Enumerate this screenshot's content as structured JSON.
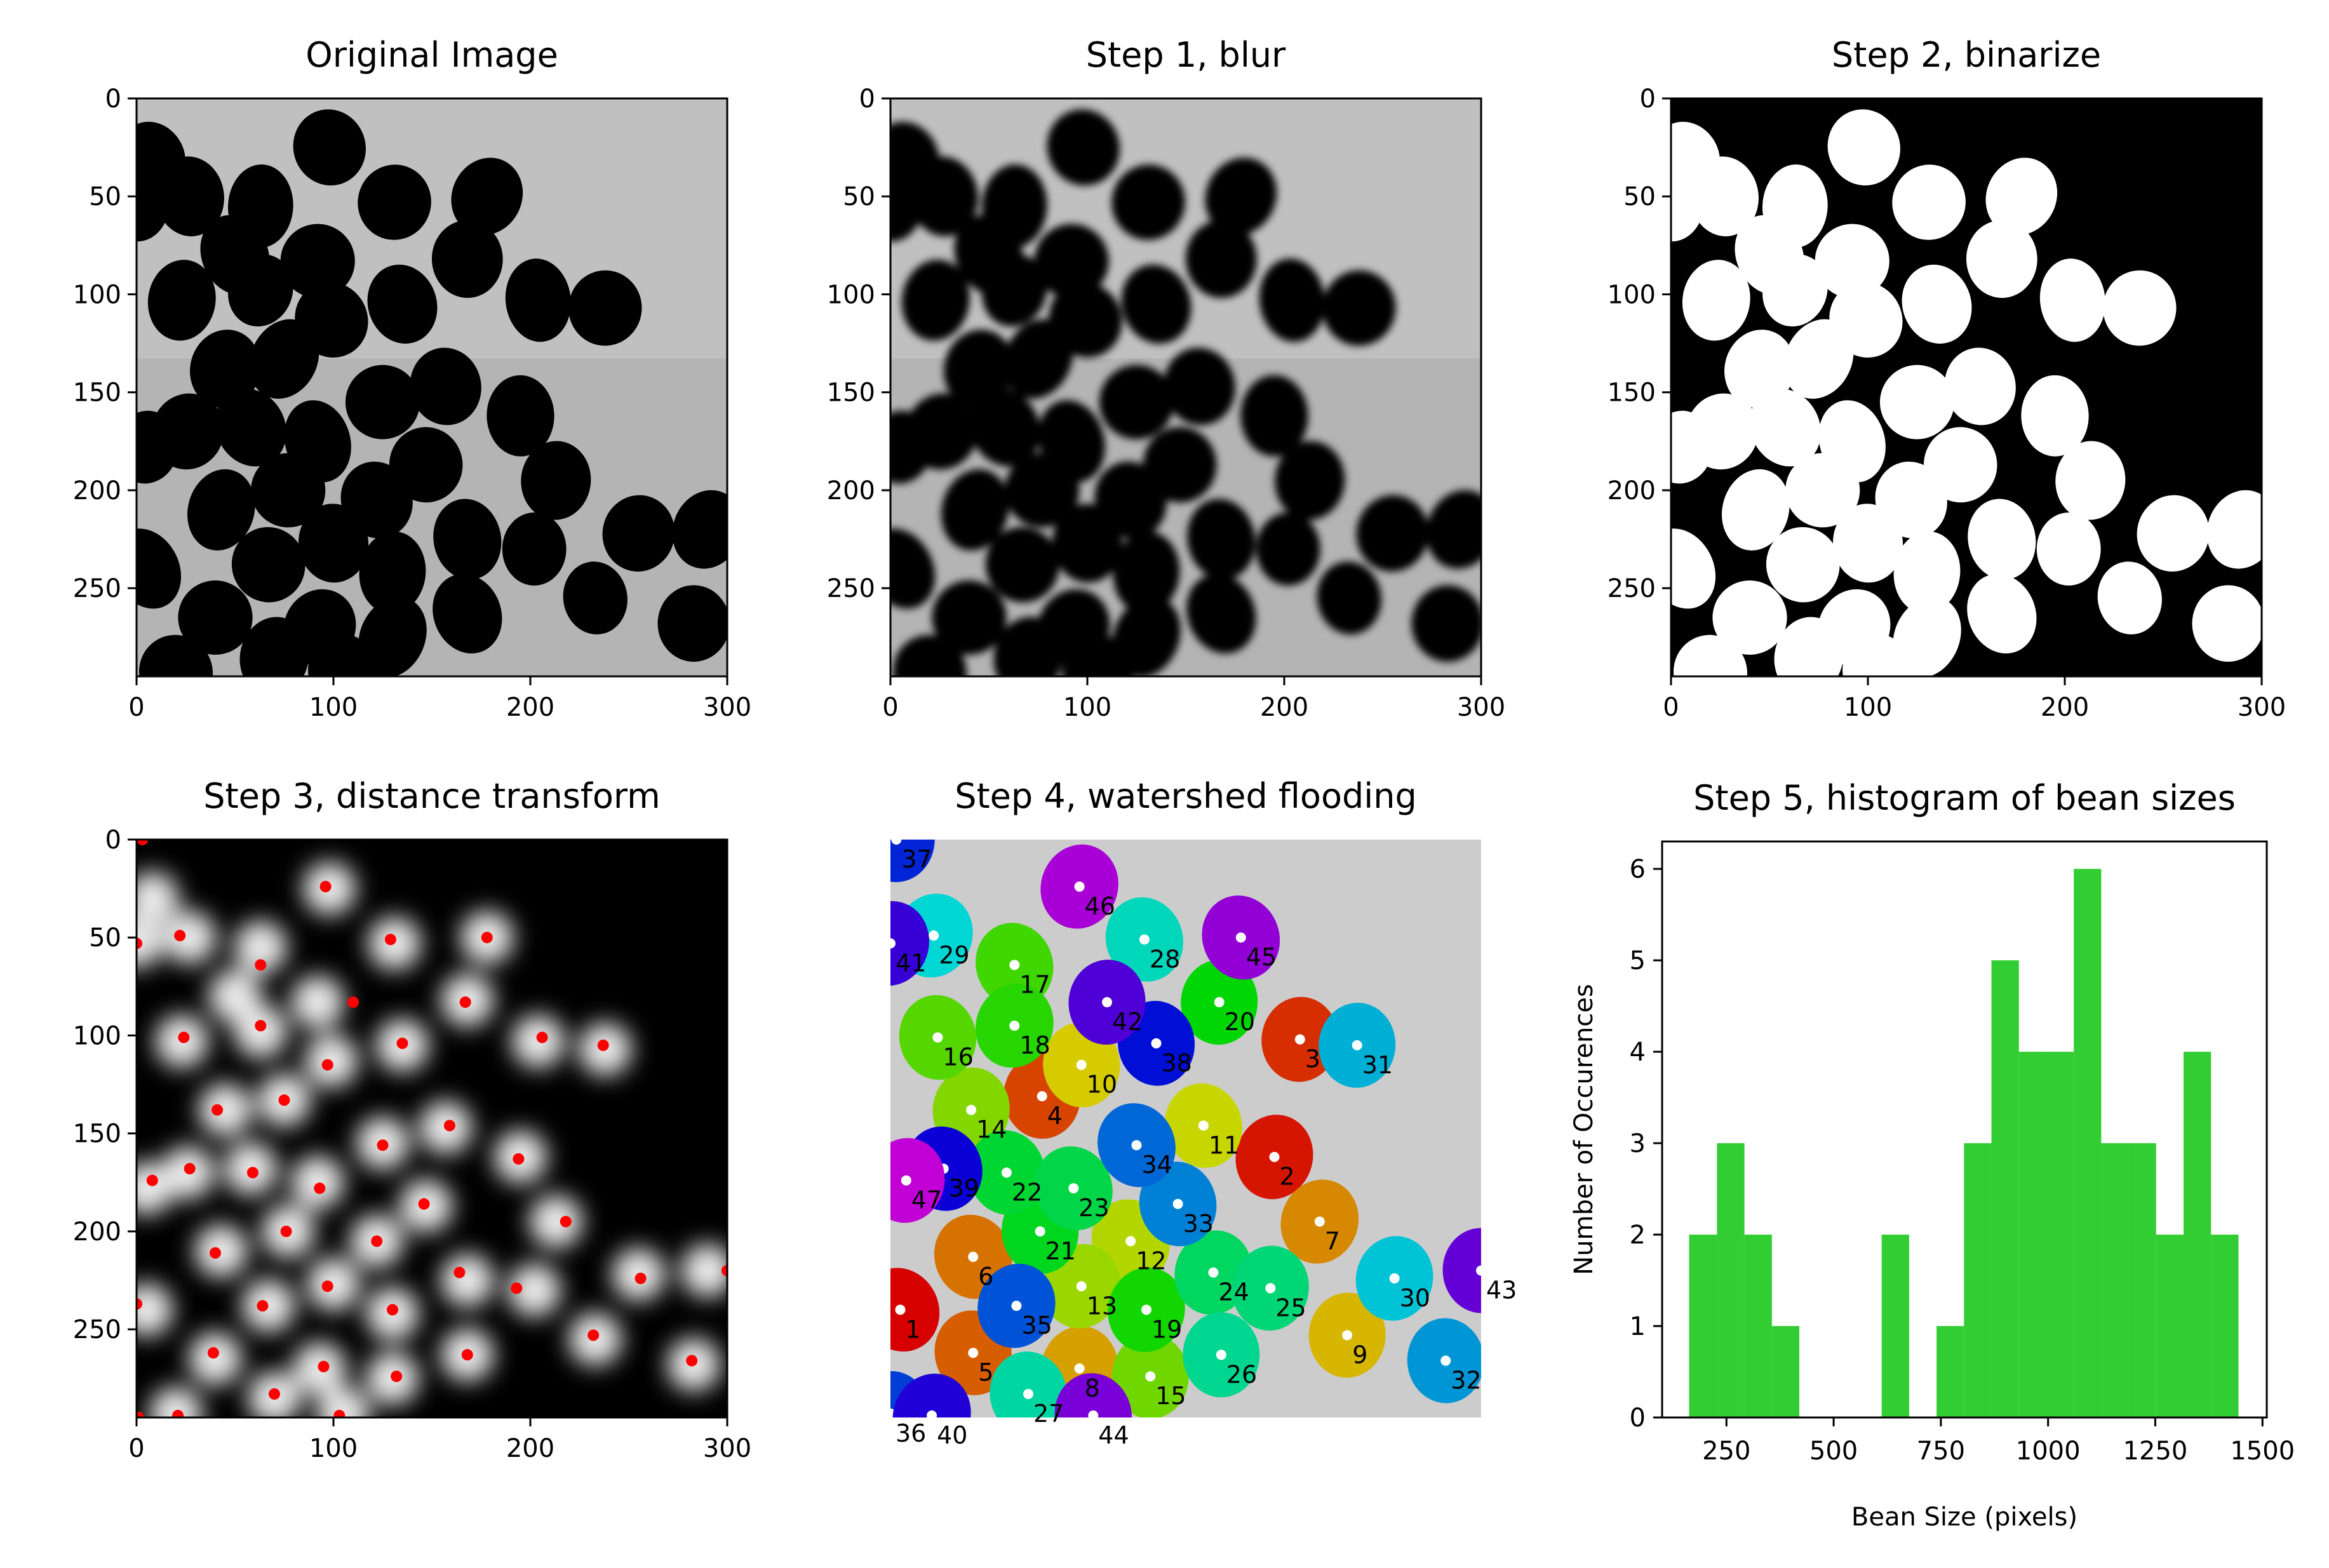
{
  "figure": {
    "panels": [
      {
        "id": "original",
        "title": "Original Image"
      },
      {
        "id": "blur",
        "title": "Step 1, blur"
      },
      {
        "id": "binarize",
        "title": "Step 2, binarize"
      },
      {
        "id": "distance",
        "title": "Step 3, distance transform"
      },
      {
        "id": "watershed",
        "title": "Step 4, watershed flooding"
      },
      {
        "id": "histogram",
        "title": "Step 5, histogram of bean sizes"
      }
    ],
    "image_axes": {
      "x_ticks": [
        "0",
        "100",
        "200",
        "300"
      ],
      "y_ticks": [
        "0",
        "50",
        "100",
        "150",
        "200",
        "250"
      ],
      "x_range": [
        0,
        300
      ],
      "y_range": [
        0,
        295
      ]
    },
    "colors": {
      "histogram_bar": "#32cd32",
      "marker_red": "#ff0000",
      "watershed_background": "#cccccc"
    }
  },
  "beans": [
    {
      "x": 8,
      "y": 30
    },
    {
      "x": 98,
      "y": 25
    },
    {
      "x": 27,
      "y": 50
    },
    {
      "x": 63,
      "y": 55
    },
    {
      "x": 131,
      "y": 53
    },
    {
      "x": 178,
      "y": 50
    },
    {
      "x": 50,
      "y": 80
    },
    {
      "x": 92,
      "y": 83
    },
    {
      "x": 168,
      "y": 82
    },
    {
      "x": 23,
      "y": 103
    },
    {
      "x": 63,
      "y": 98
    },
    {
      "x": 99,
      "y": 113
    },
    {
      "x": 135,
      "y": 105
    },
    {
      "x": 204,
      "y": 103
    },
    {
      "x": 238,
      "y": 107
    },
    {
      "x": 45,
      "y": 138
    },
    {
      "x": 75,
      "y": 133
    },
    {
      "x": 125,
      "y": 155
    },
    {
      "x": 157,
      "y": 147
    },
    {
      "x": 195,
      "y": 162
    },
    {
      "x": 5,
      "y": 178
    },
    {
      "x": 26,
      "y": 170
    },
    {
      "x": 58,
      "y": 168
    },
    {
      "x": 92,
      "y": 175
    },
    {
      "x": 147,
      "y": 187
    },
    {
      "x": 213,
      "y": 195
    },
    {
      "x": 43,
      "y": 210
    },
    {
      "x": 77,
      "y": 200
    },
    {
      "x": 122,
      "y": 205
    },
    {
      "x": 168,
      "y": 225
    },
    {
      "x": 202,
      "y": 230
    },
    {
      "x": 255,
      "y": 222
    },
    {
      "x": 290,
      "y": 220
    },
    {
      "x": 5,
      "y": 240
    },
    {
      "x": 67,
      "y": 238
    },
    {
      "x": 100,
      "y": 227
    },
    {
      "x": 130,
      "y": 242
    },
    {
      "x": 40,
      "y": 265
    },
    {
      "x": 93,
      "y": 270
    },
    {
      "x": 168,
      "y": 263
    },
    {
      "x": 233,
      "y": 255
    },
    {
      "x": 283,
      "y": 268
    },
    {
      "x": 70,
      "y": 285
    },
    {
      "x": 130,
      "y": 275
    },
    {
      "x": 20,
      "y": 293
    },
    {
      "x": 105,
      "y": 293
    },
    {
      "x": 0,
      "y": 52
    }
  ],
  "markers": [
    {
      "x": 3,
      "y": 0
    },
    {
      "x": 96,
      "y": 24
    },
    {
      "x": 22,
      "y": 49
    },
    {
      "x": 129,
      "y": 51
    },
    {
      "x": 178,
      "y": 50
    },
    {
      "x": 0,
      "y": 53
    },
    {
      "x": 63,
      "y": 64
    },
    {
      "x": 167,
      "y": 83
    },
    {
      "x": 110,
      "y": 83
    },
    {
      "x": 24,
      "y": 101
    },
    {
      "x": 63,
      "y": 95
    },
    {
      "x": 135,
      "y": 104
    },
    {
      "x": 206,
      "y": 101
    },
    {
      "x": 237,
      "y": 105
    },
    {
      "x": 97,
      "y": 115
    },
    {
      "x": 75,
      "y": 133
    },
    {
      "x": 41,
      "y": 138
    },
    {
      "x": 159,
      "y": 146
    },
    {
      "x": 125,
      "y": 156
    },
    {
      "x": 194,
      "y": 163
    },
    {
      "x": 27,
      "y": 168
    },
    {
      "x": 8,
      "y": 174
    },
    {
      "x": 59,
      "y": 170
    },
    {
      "x": 93,
      "y": 178
    },
    {
      "x": 146,
      "y": 186
    },
    {
      "x": 218,
      "y": 195
    },
    {
      "x": 76,
      "y": 200
    },
    {
      "x": 122,
      "y": 205
    },
    {
      "x": 40,
      "y": 211
    },
    {
      "x": 164,
      "y": 221
    },
    {
      "x": 97,
      "y": 228
    },
    {
      "x": 193,
      "y": 229
    },
    {
      "x": 256,
      "y": 224
    },
    {
      "x": 300,
      "y": 220
    },
    {
      "x": 0,
      "y": 237
    },
    {
      "x": 64,
      "y": 238
    },
    {
      "x": 130,
      "y": 240
    },
    {
      "x": 232,
      "y": 253
    },
    {
      "x": 39,
      "y": 262
    },
    {
      "x": 168,
      "y": 263
    },
    {
      "x": 282,
      "y": 266
    },
    {
      "x": 95,
      "y": 269
    },
    {
      "x": 132,
      "y": 274
    },
    {
      "x": 70,
      "y": 283
    },
    {
      "x": 21,
      "y": 294
    },
    {
      "x": 103,
      "y": 294
    },
    {
      "x": 1,
      "y": 295
    }
  ],
  "segments": [
    {
      "label": "1",
      "x": 5,
      "y": 240
    },
    {
      "label": "2",
      "x": 195,
      "y": 162
    },
    {
      "label": "3",
      "x": 208,
      "y": 102
    },
    {
      "label": "4",
      "x": 77,
      "y": 131
    },
    {
      "label": "5",
      "x": 42,
      "y": 262
    },
    {
      "label": "6",
      "x": 42,
      "y": 213
    },
    {
      "label": "7",
      "x": 218,
      "y": 195
    },
    {
      "label": "8",
      "x": 96,
      "y": 270
    },
    {
      "label": "9",
      "x": 232,
      "y": 253
    },
    {
      "label": "10",
      "x": 97,
      "y": 115
    },
    {
      "label": "11",
      "x": 159,
      "y": 146
    },
    {
      "label": "12",
      "x": 122,
      "y": 205
    },
    {
      "label": "13",
      "x": 97,
      "y": 228
    },
    {
      "label": "14",
      "x": 41,
      "y": 138
    },
    {
      "label": "15",
      "x": 132,
      "y": 274
    },
    {
      "label": "16",
      "x": 24,
      "y": 101
    },
    {
      "label": "17",
      "x": 63,
      "y": 64
    },
    {
      "label": "18",
      "x": 63,
      "y": 95
    },
    {
      "label": "19",
      "x": 130,
      "y": 240
    },
    {
      "label": "20",
      "x": 167,
      "y": 83
    },
    {
      "label": "21",
      "x": 76,
      "y": 200
    },
    {
      "label": "22",
      "x": 59,
      "y": 170
    },
    {
      "label": "23",
      "x": 93,
      "y": 178
    },
    {
      "label": "24",
      "x": 164,
      "y": 221
    },
    {
      "label": "25",
      "x": 193,
      "y": 229
    },
    {
      "label": "26",
      "x": 168,
      "y": 263
    },
    {
      "label": "27",
      "x": 70,
      "y": 283
    },
    {
      "label": "28",
      "x": 129,
      "y": 51
    },
    {
      "label": "29",
      "x": 22,
      "y": 49
    },
    {
      "label": "30",
      "x": 256,
      "y": 224
    },
    {
      "label": "31",
      "x": 237,
      "y": 105
    },
    {
      "label": "32",
      "x": 282,
      "y": 266
    },
    {
      "label": "33",
      "x": 146,
      "y": 186
    },
    {
      "label": "34",
      "x": 125,
      "y": 156
    },
    {
      "label": "35",
      "x": 64,
      "y": 238
    },
    {
      "label": "36",
      "x": 0,
      "y": 293
    },
    {
      "label": "37",
      "x": 3,
      "y": 0
    },
    {
      "label": "38",
      "x": 135,
      "y": 104
    },
    {
      "label": "39",
      "x": 27,
      "y": 168
    },
    {
      "label": "40",
      "x": 21,
      "y": 294
    },
    {
      "label": "41",
      "x": 0,
      "y": 53
    },
    {
      "label": "42",
      "x": 110,
      "y": 83
    },
    {
      "label": "43",
      "x": 300,
      "y": 220
    },
    {
      "label": "44",
      "x": 103,
      "y": 294
    },
    {
      "label": "45",
      "x": 178,
      "y": 50
    },
    {
      "label": "46",
      "x": 96,
      "y": 24
    },
    {
      "label": "47",
      "x": 8,
      "y": 174
    }
  ],
  "chart_data": {
    "type": "bar",
    "title": "Step 5, histogram of bean sizes",
    "xlabel": "Bean Size (pixels)",
    "ylabel": "Number of Occurences",
    "xlim": [
      100,
      1510
    ],
    "ylim": [
      0,
      6.3
    ],
    "x_ticks": [
      "250",
      "500",
      "750",
      "1000",
      "1250",
      "1500"
    ],
    "y_ticks": [
      "0",
      "1",
      "2",
      "3",
      "4",
      "5",
      "6"
    ],
    "grid": false,
    "color": "#32cd32",
    "bins": [
      {
        "x0": 163,
        "x1": 228,
        "count": 2
      },
      {
        "x0": 228,
        "x1": 292,
        "count": 3
      },
      {
        "x0": 292,
        "x1": 356,
        "count": 2
      },
      {
        "x0": 356,
        "x1": 420,
        "count": 1
      },
      {
        "x0": 420,
        "x1": 484,
        "count": 0
      },
      {
        "x0": 484,
        "x1": 548,
        "count": 0
      },
      {
        "x0": 548,
        "x1": 612,
        "count": 0
      },
      {
        "x0": 612,
        "x1": 676,
        "count": 2
      },
      {
        "x0": 676,
        "x1": 740,
        "count": 0
      },
      {
        "x0": 740,
        "x1": 804,
        "count": 1
      },
      {
        "x0": 804,
        "x1": 868,
        "count": 3
      },
      {
        "x0": 868,
        "x1": 932,
        "count": 5
      },
      {
        "x0": 932,
        "x1": 996,
        "count": 4
      },
      {
        "x0": 996,
        "x1": 1060,
        "count": 4
      },
      {
        "x0": 1060,
        "x1": 1124,
        "count": 6
      },
      {
        "x0": 1124,
        "x1": 1188,
        "count": 3
      },
      {
        "x0": 1188,
        "x1": 1252,
        "count": 3
      },
      {
        "x0": 1252,
        "x1": 1316,
        "count": 2
      },
      {
        "x0": 1316,
        "x1": 1380,
        "count": 4
      },
      {
        "x0": 1380,
        "x1": 1444,
        "count": 2
      }
    ]
  }
}
